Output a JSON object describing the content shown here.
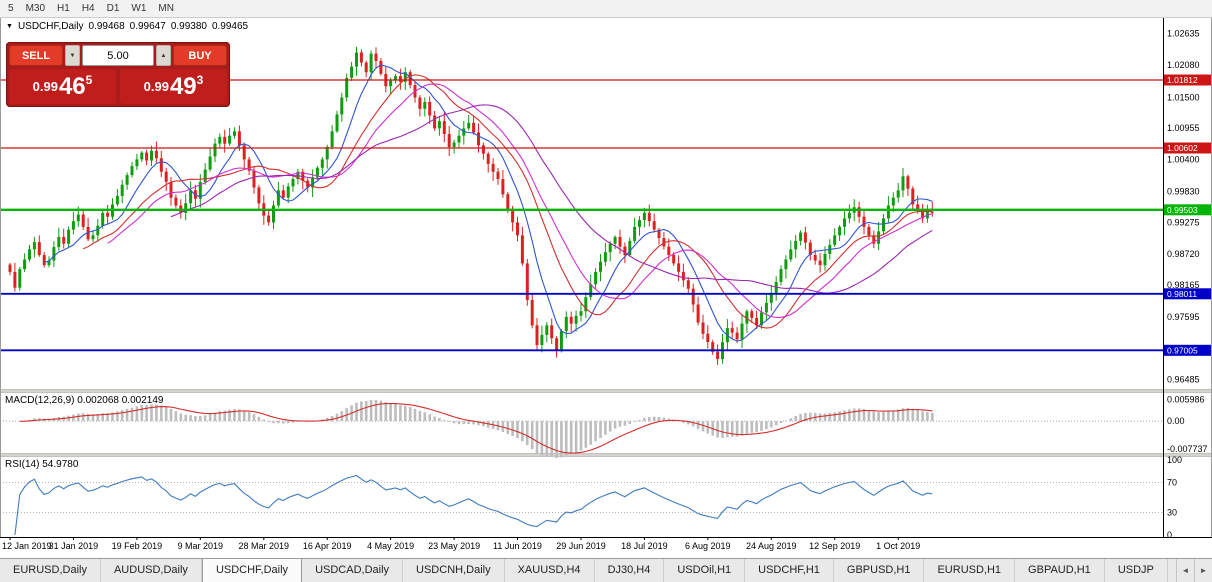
{
  "toolbar": {
    "timeframes": [
      "5",
      "M30",
      "H1",
      "H4",
      "D1",
      "W1",
      "MN"
    ]
  },
  "header": {
    "icon": "▼",
    "symbol": "USDCHF,Daily",
    "open": "0.99468",
    "high": "0.99647",
    "low": "0.99380",
    "close": "0.99465"
  },
  "trade_panel": {
    "sell_label": "SELL",
    "buy_label": "BUY",
    "volume": "5.00",
    "spinner_down": "▼",
    "spinner_up": "▲",
    "sell_price": {
      "prefix": "0.99",
      "big": "46",
      "sup": "5"
    },
    "buy_price": {
      "prefix": "0.99",
      "big": "49",
      "sup": "3"
    }
  },
  "panels": {
    "macd_title": "MACD(12,26,9) 0.002068 0.002149",
    "rsi_title": "RSI(14) 54.9780"
  },
  "tabs": {
    "items": [
      "EURUSD,Daily",
      "AUDUSD,Daily",
      "USDCHF,Daily",
      "USDCAD,Daily",
      "USDCNH,Daily",
      "XAUUSD,H4",
      "DJ30,H4",
      "USDOil,H1",
      "USDCHF,H1",
      "GBPUSD,H1",
      "EURUSD,H1",
      "GBPAUD,H1",
      "USDJP"
    ],
    "active_index": 2,
    "scroll_left": "◄",
    "scroll_right": "►"
  },
  "chart_data": {
    "type": "candlestick",
    "symbol": "USDCHF",
    "timeframe": "Daily",
    "last_candle": {
      "open": 0.99468,
      "high": 0.99647,
      "low": 0.9938,
      "close": 0.99465
    },
    "price_range": [
      0.963,
      1.027
    ],
    "candle_up_color": "#0f9d0f",
    "candle_down_color": "#dd2020",
    "closes": [
      0.984,
      0.9812,
      0.9845,
      0.9862,
      0.988,
      0.9893,
      0.987,
      0.9852,
      0.986,
      0.9884,
      0.9902,
      0.989,
      0.9915,
      0.993,
      0.9942,
      0.992,
      0.9898,
      0.9905,
      0.9922,
      0.9945,
      0.9938,
      0.996,
      0.9975,
      0.9995,
      1.0012,
      1.0028,
      1.004,
      1.0052,
      1.0038,
      1.0055,
      1.0042,
      1.0018,
      1.0,
      0.9972,
      0.9958,
      0.9945,
      0.9962,
      0.9985,
      0.997,
      1.0,
      1.0022,
      1.0045,
      1.0068,
      1.008,
      1.0068,
      1.0082,
      1.009,
      1.0065,
      1.004,
      1.002,
      0.999,
      0.9962,
      0.994,
      0.9928,
      0.9958,
      0.9985,
      0.9972,
      0.9992,
      1.0005,
      1.0018,
      1.0002,
      0.999,
      1.0008,
      1.0025,
      1.004,
      1.0062,
      1.009,
      1.012,
      1.015,
      1.0185,
      1.0205,
      1.023,
      1.0212,
      1.0195,
      1.0228,
      1.0215,
      1.0192,
      1.017,
      1.018,
      1.0188,
      1.0178,
      1.0195,
      1.0172,
      1.015,
      1.013,
      1.0142,
      1.0118,
      1.0095,
      1.0108,
      1.0085,
      1.0062,
      1.007,
      1.0082,
      1.0095,
      1.0105,
      1.0088,
      1.0065,
      1.005,
      1.0032,
      1.0018,
      1.0005,
      0.9978,
      0.9952,
      0.9928,
      0.9905,
      0.9855,
      0.979,
      0.9745,
      0.971,
      0.9728,
      0.9745,
      0.9722,
      0.97,
      0.9735,
      0.976,
      0.9748,
      0.9762,
      0.977,
      0.9795,
      0.9818,
      0.984,
      0.9858,
      0.9875,
      0.989,
      0.9902,
      0.9885,
      0.987,
      0.9895,
      0.992,
      0.9932,
      0.9945,
      0.993,
      0.9915,
      0.99,
      0.9885,
      0.987,
      0.9855,
      0.984,
      0.9825,
      0.981,
      0.9782,
      0.975,
      0.973,
      0.9715,
      0.9698,
      0.9685,
      0.9715,
      0.974,
      0.9732,
      0.972,
      0.9748,
      0.977,
      0.9758,
      0.9745,
      0.9768,
      0.9785,
      0.98,
      0.9822,
      0.9845,
      0.9862,
      0.988,
      0.9895,
      0.991,
      0.9892,
      0.987,
      0.986,
      0.9852,
      0.9872,
      0.9888,
      0.9905,
      0.992,
      0.9935,
      0.9945,
      0.9955,
      0.9938,
      0.992,
      0.9905,
      0.989,
      0.9912,
      0.9935,
      0.9958,
      0.9972,
      0.9985,
      1.001,
      0.9988,
      0.996,
      0.9948,
      0.9935,
      0.995,
      0.99465
    ],
    "moving_averages": [
      {
        "period": 8,
        "color": "#2f55cf"
      },
      {
        "period": 16,
        "color": "#d32f2f"
      },
      {
        "period": 21,
        "color": "#d02fd0"
      },
      {
        "period": 34,
        "color": "#9c27b0"
      }
    ],
    "hlines": [
      {
        "price": 1.01812,
        "label": "1.01812",
        "color": "#cc1515",
        "width": 1.2
      },
      {
        "price": 1.00602,
        "label": "1.00602",
        "color": "#cc1515",
        "width": 1.2
      },
      {
        "price": 0.99503,
        "label": "0.99503",
        "color": "#00b400",
        "width": 2.4
      },
      {
        "price": 0.98011,
        "label": "0.98011",
        "color": "#0000c8",
        "width": 1.8
      },
      {
        "price": 0.97005,
        "label": "0.97005",
        "color": "#0000c8",
        "width": 1.8
      }
    ],
    "y_ticks": [
      "1.02635",
      "1.02080",
      "1.01500",
      "1.00955",
      "1.00400",
      "0.99830",
      "0.99275",
      "0.98720",
      "0.98165",
      "0.97595",
      "0.97040",
      "0.96485"
    ],
    "date_ticks": {
      "labels": [
        "12 Jan 2019",
        "31 Jan 2019",
        "19 Feb 2019",
        "9 Mar 2019",
        "28 Mar 2019",
        "16 Apr 2019",
        "4 May 2019",
        "23 May 2019",
        "11 Jun 2019",
        "29 Jun 2019",
        "18 Jul 2019",
        "6 Aug 2019",
        "24 Aug 2019",
        "12 Sep 2019",
        "1 Oct 2019"
      ],
      "candle_indices": [
        0,
        13,
        26,
        39,
        52,
        65,
        78,
        91,
        104,
        117,
        130,
        143,
        156,
        169,
        182
      ]
    },
    "macd": {
      "fast": 12,
      "slow": 26,
      "signal": 9,
      "current_main": 0.002068,
      "current_signal": 0.002149,
      "scale_labels": [
        "0.005986",
        "0.00",
        "-0.007737"
      ],
      "range": [
        -0.0088,
        0.0072
      ],
      "hist_color": "#bdbdbd",
      "signal_color": "#d32f2f"
    },
    "rsi": {
      "period": 14,
      "current": 54.978,
      "levels": [
        "100",
        "70",
        "30",
        "0"
      ],
      "dotted_levels": [
        70,
        30
      ],
      "range": [
        0,
        100
      ],
      "line_color": "#3f7cc0"
    }
  }
}
